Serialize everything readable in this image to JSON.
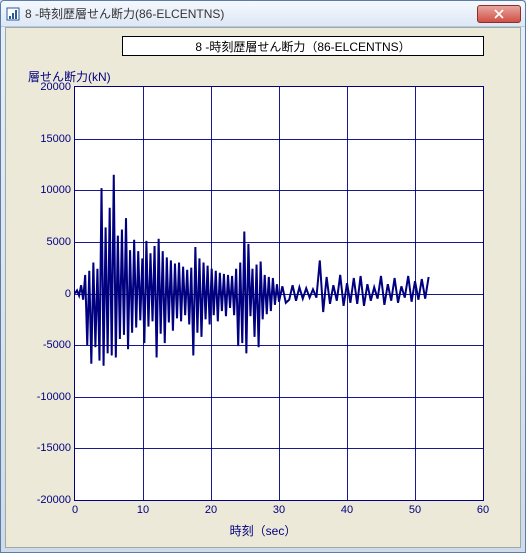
{
  "window": {
    "title": "8 -時刻歴層せん断力(86-ELCENTNS)"
  },
  "chart": {
    "type": "line",
    "title": "8  -時刻歴層せん断力（86-ELCENTNS）",
    "ylabel": "層せん断力(kN)",
    "xlabel": "時刻（sec）",
    "xlim": [
      0,
      60
    ],
    "ylim": [
      -20000,
      20000
    ],
    "xtick_step": 10,
    "ytick_step": 5000,
    "xticks": [
      0,
      10,
      20,
      30,
      40,
      50,
      60
    ],
    "yticks": [
      -20000,
      -15000,
      -10000,
      -5000,
      0,
      5000,
      10000,
      15000,
      20000
    ],
    "background_color": "#ffffff",
    "panel_color": "#ece9d8",
    "grid_color": "#000080",
    "line_color": "#000080",
    "axis_color": "#000080",
    "label_color": "#000080",
    "title_fontsize": 12,
    "label_fontsize": 12,
    "tick_fontsize": 11,
    "line_width": 1,
    "series": {
      "x": [
        0,
        0.3,
        0.6,
        0.9,
        1.2,
        1.5,
        1.8,
        2.1,
        2.4,
        2.7,
        3.0,
        3.3,
        3.6,
        3.9,
        4.2,
        4.5,
        4.8,
        5.1,
        5.4,
        5.7,
        6.0,
        6.3,
        6.6,
        6.9,
        7.2,
        7.5,
        7.8,
        8.1,
        8.4,
        8.7,
        9.0,
        9.3,
        9.6,
        9.9,
        10.2,
        10.5,
        10.8,
        11.1,
        11.4,
        11.7,
        12.0,
        12.3,
        12.6,
        12.9,
        13.2,
        13.5,
        13.8,
        14.1,
        14.4,
        14.7,
        15.0,
        15.3,
        15.6,
        15.9,
        16.2,
        16.5,
        16.8,
        17.1,
        17.4,
        17.7,
        18.0,
        18.3,
        18.6,
        18.9,
        19.2,
        19.5,
        19.8,
        20.1,
        20.4,
        20.7,
        21.0,
        21.3,
        21.6,
        21.9,
        22.2,
        22.5,
        22.8,
        23.1,
        23.4,
        23.7,
        24.0,
        24.3,
        24.6,
        24.9,
        25.2,
        25.5,
        25.8,
        26.1,
        26.4,
        26.7,
        27.0,
        27.3,
        27.6,
        27.9,
        28.2,
        28.5,
        28.8,
        29.1,
        29.4,
        29.7,
        30.0,
        30.5,
        31.0,
        31.5,
        32.0,
        32.5,
        33.0,
        33.5,
        34.0,
        34.5,
        35.0,
        35.5,
        36.0,
        36.5,
        37.0,
        37.5,
        38.0,
        38.5,
        39.0,
        39.5,
        40.0,
        40.5,
        41.0,
        41.5,
        42.0,
        42.5,
        43.0,
        43.5,
        44.0,
        44.5,
        45.0,
        45.5,
        46.0,
        46.5,
        47.0,
        47.5,
        48.0,
        48.5,
        49.0,
        49.5,
        50.0,
        50.5,
        51.0,
        51.5,
        52.0
      ],
      "y": [
        0,
        300,
        -200,
        800,
        -600,
        1800,
        -5000,
        2200,
        -6800,
        3000,
        -5200,
        2400,
        -6500,
        10200,
        -7000,
        6400,
        -5800,
        8300,
        -6000,
        11500,
        -6200,
        5600,
        -4400,
        6200,
        -4000,
        7300,
        -5400,
        4200,
        -3800,
        5200,
        -3300,
        4100,
        -2600,
        3400,
        -4800,
        5100,
        -3200,
        3900,
        -2700,
        4600,
        -6200,
        5300,
        -3900,
        4100,
        -4800,
        3500,
        -2800,
        3200,
        -3600,
        2900,
        -2400,
        3000,
        -2700,
        2600,
        -2100,
        2300,
        -3000,
        2500,
        -6000,
        4500,
        -3800,
        3400,
        -4200,
        3000,
        -2500,
        2700,
        -3000,
        2400,
        -2100,
        2200,
        -2700,
        2000,
        -1700,
        1900,
        -2200,
        1800,
        -1400,
        1700,
        -2100,
        2400,
        -5100,
        3000,
        -4800,
        6000,
        -5800,
        4800,
        -2200,
        2400,
        -4200,
        2800,
        -5200,
        3100,
        -2500,
        1800,
        -2000,
        1600,
        -1700,
        1500,
        -1100,
        900,
        -800,
        700,
        -900,
        -600,
        800,
        -700,
        600,
        -500,
        500,
        -400,
        400,
        -400,
        3200,
        -1800,
        1600,
        -1000,
        800,
        -700,
        1800,
        -1200,
        1000,
        -900,
        1500,
        -1000,
        1700,
        -1200,
        900,
        -700,
        600,
        -500,
        1700,
        -1100,
        900,
        -700,
        1500,
        -900,
        700,
        -400,
        1700,
        -800,
        1200,
        -600,
        1400,
        -500,
        1600
      ]
    }
  }
}
